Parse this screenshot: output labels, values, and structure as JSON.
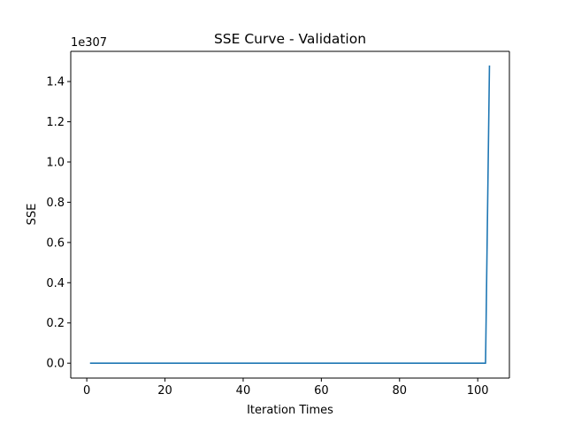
{
  "chart_data": {
    "type": "line",
    "title": "SSE Curve - Validation",
    "xlabel": "Iteration Times",
    "ylabel": "SSE",
    "y_offset_label": "1e307",
    "xlim": [
      -4.1,
      108.1
    ],
    "ylim": [
      -0.074,
      1.55
    ],
    "x_ticks": [
      0,
      20,
      40,
      60,
      80,
      100
    ],
    "x_tick_labels": [
      "0",
      "20",
      "40",
      "60",
      "80",
      "100"
    ],
    "y_ticks": [
      0.0,
      0.2,
      0.4,
      0.6,
      0.8,
      1.0,
      1.2,
      1.4
    ],
    "y_tick_labels": [
      "0.0",
      "0.2",
      "0.4",
      "0.6",
      "0.8",
      "1.0",
      "1.2",
      "1.4"
    ],
    "grid": false,
    "series": [
      {
        "color": "#1f77b4",
        "x": [
          1,
          102,
          103
        ],
        "y": [
          0.0,
          0.0,
          1.476
        ]
      }
    ]
  }
}
